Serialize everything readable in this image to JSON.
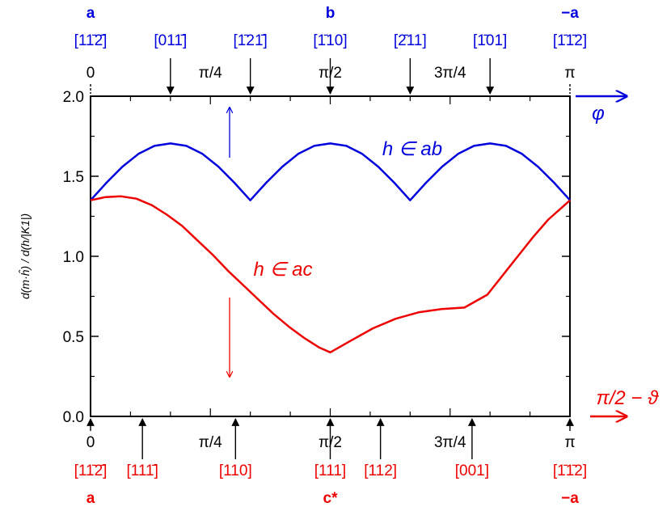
{
  "chart_data": {
    "type": "line",
    "xlim": [
      0,
      3.14159
    ],
    "ylim": [
      0,
      2.0
    ],
    "grid": false,
    "yticks": [
      0.0,
      0.5,
      1.0,
      1.5,
      2.0
    ],
    "ytick_labels": [
      "0.0",
      "0.5",
      "1.0",
      "1.5",
      "2.0"
    ],
    "ylabel": "d(m·ĥ) / d(h/|K1|)",
    "top_pi_labels": [
      {
        "x": 0,
        "label": "0"
      },
      {
        "x": 0.7854,
        "label": "π/4"
      },
      {
        "x": 1.5708,
        "label": "π/2"
      },
      {
        "x": 2.3562,
        "label": "3π/4"
      },
      {
        "x": 3.14159,
        "label": "π"
      }
    ],
    "bottom_pi_labels": [
      {
        "x": 0,
        "label": "0"
      },
      {
        "x": 0.7854,
        "label": "π/4"
      },
      {
        "x": 1.5708,
        "label": "π/2"
      },
      {
        "x": 2.3562,
        "label": "3π/4"
      },
      {
        "x": 3.14159,
        "label": "π"
      }
    ],
    "top_axis_title": "φ",
    "bottom_axis_title": "π/2 − ϑ",
    "top_directions": [
      {
        "x": 0,
        "label": "a"
      },
      {
        "x": 1.5708,
        "label": "b"
      },
      {
        "x": 3.14159,
        "label": "−a"
      }
    ],
    "top_miller": [
      {
        "x": 0,
        "label": "[11̄2̄]",
        "arrow": false
      },
      {
        "x": 0.5236,
        "label": "[011̄]",
        "arrow": true
      },
      {
        "x": 1.0472,
        "label": "[1̄21̄]",
        "arrow": true
      },
      {
        "x": 1.5708,
        "label": "[1̄10]",
        "arrow": true
      },
      {
        "x": 2.0944,
        "label": "[2̄11]",
        "arrow": true
      },
      {
        "x": 2.618,
        "label": "[1̄01]",
        "arrow": true
      },
      {
        "x": 3.14159,
        "label": "[1̄1̄2]",
        "arrow": false
      }
    ],
    "bottom_directions": [
      {
        "x": 0,
        "label": "a"
      },
      {
        "x": 1.5708,
        "label": "c*"
      },
      {
        "x": 3.14159,
        "label": "−a"
      }
    ],
    "bottom_miller": [
      {
        "x": 0,
        "label": "[11̄2̄]"
      },
      {
        "x": 0.34,
        "label": "[111̄]"
      },
      {
        "x": 0.95,
        "label": "[110]"
      },
      {
        "x": 1.5708,
        "label": "[111]"
      },
      {
        "x": 1.9,
        "label": "[112]"
      },
      {
        "x": 2.5,
        "label": "[001]"
      },
      {
        "x": 3.14159,
        "label": "[1̄1̄2]"
      }
    ],
    "series": [
      {
        "name": "h ∈ ab",
        "color": "#0000dd",
        "x": [
          0,
          0.105,
          0.209,
          0.314,
          0.419,
          0.524,
          0.628,
          0.733,
          0.838,
          0.942,
          1.047,
          1.152,
          1.257,
          1.361,
          1.466,
          1.571,
          1.676,
          1.78,
          1.885,
          1.99,
          2.094,
          2.199,
          2.304,
          2.409,
          2.513,
          2.618,
          2.723,
          2.827,
          2.932,
          3.037,
          3.142
        ],
        "y": [
          1.35,
          1.46,
          1.56,
          1.64,
          1.69,
          1.705,
          1.69,
          1.64,
          1.56,
          1.46,
          1.35,
          1.46,
          1.56,
          1.64,
          1.69,
          1.705,
          1.69,
          1.64,
          1.56,
          1.46,
          1.35,
          1.46,
          1.56,
          1.64,
          1.69,
          1.705,
          1.69,
          1.64,
          1.56,
          1.46,
          1.35
        ]
      },
      {
        "name": "h ∈ ac",
        "color": "#ee0000",
        "x": [
          0,
          0.1,
          0.2,
          0.3,
          0.4,
          0.5,
          0.6,
          0.7,
          0.8,
          0.9,
          1.0,
          1.1,
          1.2,
          1.3,
          1.4,
          1.5,
          1.571,
          1.7,
          1.85,
          2.0,
          2.15,
          2.3,
          2.45,
          2.6,
          2.7,
          2.8,
          2.9,
          3.0,
          3.142
        ],
        "y": [
          1.35,
          1.37,
          1.375,
          1.36,
          1.32,
          1.26,
          1.19,
          1.1,
          1.01,
          0.91,
          0.82,
          0.73,
          0.64,
          0.56,
          0.49,
          0.43,
          0.4,
          0.47,
          0.55,
          0.61,
          0.65,
          0.67,
          0.68,
          0.76,
          0.88,
          1.0,
          1.12,
          1.23,
          1.35
        ]
      }
    ],
    "annotations": [
      {
        "text": "h ∈ ab",
        "color": "#0000dd"
      },
      {
        "text": "h ∈ ac",
        "color": "#ee0000"
      }
    ]
  },
  "colors": {
    "blue": "#0000dd",
    "red": "#ee0000",
    "black": "#000000"
  }
}
